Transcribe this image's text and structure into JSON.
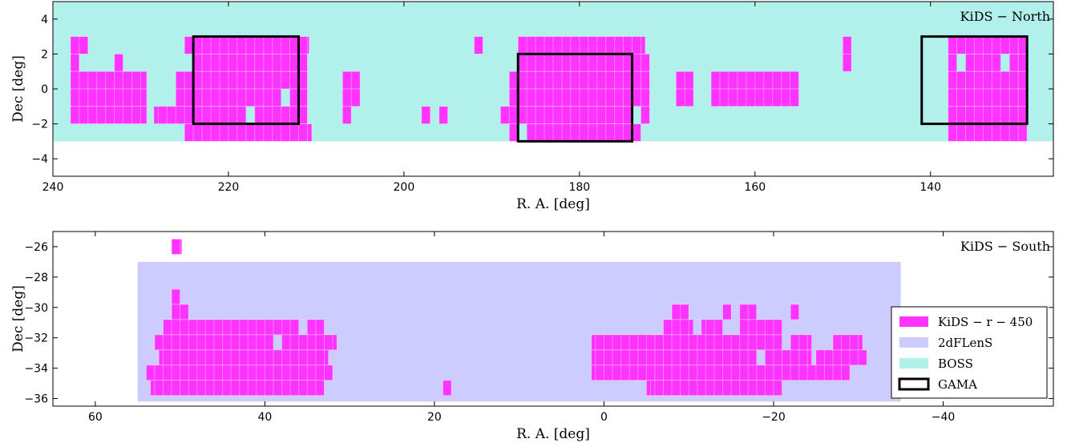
{
  "chart_data": [
    {
      "type": "scatter",
      "title": "KiDS − North",
      "xlabel": "R. A.    [deg]",
      "ylabel": "Dec    [deg]",
      "xlim": [
        240,
        126
      ],
      "ylim": [
        -5,
        5
      ],
      "xticks": [
        240,
        220,
        200,
        180,
        160,
        140
      ],
      "yticks": [
        -4,
        -2,
        0,
        2,
        4
      ],
      "regions": [
        {
          "name": "BOSS",
          "color": "#b2f0ec",
          "ra": [
            240,
            126
          ],
          "dec": [
            -3,
            5
          ]
        }
      ],
      "gama_fields": [
        {
          "ra": [
            224,
            212
          ],
          "dec": [
            -2,
            3
          ]
        },
        {
          "ra": [
            187,
            174
          ],
          "dec": [
            -3,
            2
          ]
        },
        {
          "ra": [
            141,
            129
          ],
          "dec": [
            -2,
            3
          ]
        }
      ],
      "tile_color": "#ff33ff",
      "tile_rows": [
        {
          "dec": [
            2,
            3
          ],
          "ra": [
            [
              238,
              236
            ],
            [
              225,
              210.8
            ],
            [
              192,
              191
            ],
            [
              187,
              172.5
            ],
            [
              150,
              149
            ],
            [
              138,
              129
            ]
          ]
        },
        {
          "dec": [
            1,
            2
          ],
          "ra": [
            [
              238,
              237
            ],
            [
              233,
              232
            ],
            [
              224,
              211
            ],
            [
              187,
              172
            ],
            [
              150,
              149
            ],
            [
              138,
              129
            ]
          ]
        },
        {
          "dec": [
            0,
            1
          ],
          "ra": [
            [
              238,
              229.3
            ],
            [
              226,
              211
            ],
            [
              207,
              205
            ],
            [
              188,
              172
            ],
            [
              169,
              167
            ],
            [
              165,
              155
            ],
            [
              138,
              129
            ]
          ]
        },
        {
          "dec": [
            -1,
            0
          ],
          "ra": [
            [
              238,
              229.3
            ],
            [
              226,
              211
            ],
            [
              207,
              205
            ],
            [
              188,
              172
            ],
            [
              169,
              167
            ],
            [
              165,
              155
            ],
            [
              138,
              129
            ]
          ]
        },
        {
          "dec": [
            -2,
            -1
          ],
          "ra": [
            [
              238,
              229.3
            ],
            [
              228.5,
              211
            ],
            [
              207,
              206
            ],
            [
              198,
              197
            ],
            [
              196,
              195
            ],
            [
              189,
              172
            ],
            [
              138,
              129
            ]
          ]
        },
        {
          "dec": [
            -3,
            -2
          ],
          "ra": [
            [
              225,
              210.5
            ],
            [
              188,
              173
            ],
            [
              138,
              129
            ]
          ]
        }
      ],
      "holes": [
        {
          "ra": [
            214,
            213
          ],
          "dec": [
            -1,
            0
          ]
        },
        {
          "ra": [
            218,
            217
          ],
          "dec": [
            -2,
            -1
          ]
        },
        {
          "ra": [
            174,
            173
          ],
          "dec": [
            -2,
            -1
          ]
        },
        {
          "ra": [
            187,
            186
          ],
          "dec": [
            -3,
            -2
          ]
        },
        {
          "ra": [
            137,
            136
          ],
          "dec": [
            1,
            2
          ]
        },
        {
          "ra": [
            132,
            131
          ],
          "dec": [
            1,
            2
          ]
        }
      ]
    },
    {
      "type": "scatter",
      "title": "KiDS − South",
      "xlabel": "R. A.    [deg]",
      "ylabel": "Dec    [deg]",
      "xlim": [
        65,
        -53
      ],
      "ylim": [
        -36.5,
        -25
      ],
      "xticks": [
        60,
        40,
        20,
        0,
        -20,
        -40
      ],
      "yticks": [
        -26,
        -28,
        -30,
        -32,
        -34,
        -36
      ],
      "regions": [
        {
          "name": "2dFLenS",
          "color": "#ccccff",
          "ra": [
            55,
            -35
          ],
          "dec": [
            -36.2,
            -27
          ]
        }
      ],
      "tile_color": "#ff33ff",
      "tile_rows": [
        {
          "dec": [
            -26.5,
            -25.5
          ],
          "ra": [
            [
              51,
              49.8
            ]
          ]
        },
        {
          "dec": [
            -29.8,
            -28.8
          ],
          "ra": [
            [
              51,
              50
            ]
          ]
        },
        {
          "dec": [
            -30.8,
            -29.8
          ],
          "ra": [
            [
              51,
              49
            ]
          ]
        },
        {
          "dec": [
            -30.8,
            -29.8
          ],
          "ra": [
            [
              -8,
              -10
            ]
          ]
        },
        {
          "dec": [
            -30.8,
            -29.8
          ],
          "ra": [
            [
              -14,
              -15
            ]
          ]
        },
        {
          "dec": [
            -30.8,
            -29.8
          ],
          "ra": [
            [
              -16,
              -18
            ]
          ]
        },
        {
          "dec": [
            -30.8,
            -29.8
          ],
          "ra": [
            [
              -22,
              -23
            ]
          ]
        },
        {
          "dec": [
            -31.8,
            -30.8
          ],
          "ra": [
            [
              52,
              33
            ]
          ]
        },
        {
          "dec": [
            -31.8,
            -30.8
          ],
          "ra": [
            [
              -7,
              -14
            ]
          ]
        },
        {
          "dec": [
            -31.8,
            -30.8
          ],
          "ra": [
            [
              -16,
              -21
            ]
          ]
        },
        {
          "dec": [
            -32.8,
            -31.8
          ],
          "ra": [
            [
              53,
              31.5
            ]
          ]
        },
        {
          "dec": [
            -32.8,
            -31.8
          ],
          "ra": [
            [
              -5,
              -7
            ]
          ]
        },
        {
          "dec": [
            -32.8,
            -31.8
          ],
          "ra": [
            [
              1.5,
              -21
            ]
          ]
        },
        {
          "dec": [
            -32.8,
            -31.8
          ],
          "ra": [
            [
              -22,
              -24.5
            ]
          ]
        },
        {
          "dec": [
            -32.8,
            -31.8
          ],
          "ra": [
            [
              -27,
              -30.5
            ]
          ]
        },
        {
          "dec": [
            -33.8,
            -32.8
          ],
          "ra": [
            [
              52.5,
              32.5
            ]
          ]
        },
        {
          "dec": [
            -33.8,
            -32.8
          ],
          "ra": [
            [
              -3,
              -4
            ]
          ]
        },
        {
          "dec": [
            -33.8,
            -32.8
          ],
          "ra": [
            [
              1.5,
              -24.5
            ]
          ]
        },
        {
          "dec": [
            -33.8,
            -32.8
          ],
          "ra": [
            [
              -25,
              -31
            ]
          ]
        },
        {
          "dec": [
            -34.8,
            -33.8
          ],
          "ra": [
            [
              54,
              32
            ]
          ]
        },
        {
          "dec": [
            -34.8,
            -33.8
          ],
          "ra": [
            [
              -3,
              -4
            ]
          ]
        },
        {
          "dec": [
            -34.8,
            -33.8
          ],
          "ra": [
            [
              1.5,
              -29
            ]
          ]
        },
        {
          "dec": [
            -35.8,
            -34.8
          ],
          "ra": [
            [
              53.5,
              33
            ]
          ]
        },
        {
          "dec": [
            -35.8,
            -34.8
          ],
          "ra": [
            [
              19,
              18
            ]
          ]
        },
        {
          "dec": [
            -35.8,
            -34.8
          ],
          "ra": [
            [
              -5,
              -7
            ]
          ]
        },
        {
          "dec": [
            -35.8,
            -34.8
          ],
          "ra": [
            [
              -5.5,
              -21
            ]
          ]
        }
      ],
      "holes": [
        {
          "ra": [
            36,
            35
          ],
          "dec": [
            -31.8,
            -30.8
          ]
        },
        {
          "ra": [
            -10.5,
            -11.5
          ],
          "dec": [
            -31.8,
            -30.8
          ]
        },
        {
          "ra": [
            39,
            38
          ],
          "dec": [
            -32.8,
            -31.8
          ]
        },
        {
          "ra": [
            -18,
            -19
          ],
          "dec": [
            -33.8,
            -32.8
          ]
        }
      ],
      "legend": {
        "placement": "lower-right",
        "entries": [
          {
            "label": "KiDS − r − 450",
            "color": "#ff33ff",
            "kind": "fill"
          },
          {
            "label": "2dFLenS",
            "color": "#ccccff",
            "kind": "fill"
          },
          {
            "label": "BOSS",
            "color": "#b2f0ec",
            "kind": "fill"
          },
          {
            "label": "GAMA",
            "color": "#000000",
            "kind": "outline"
          }
        ]
      }
    }
  ]
}
